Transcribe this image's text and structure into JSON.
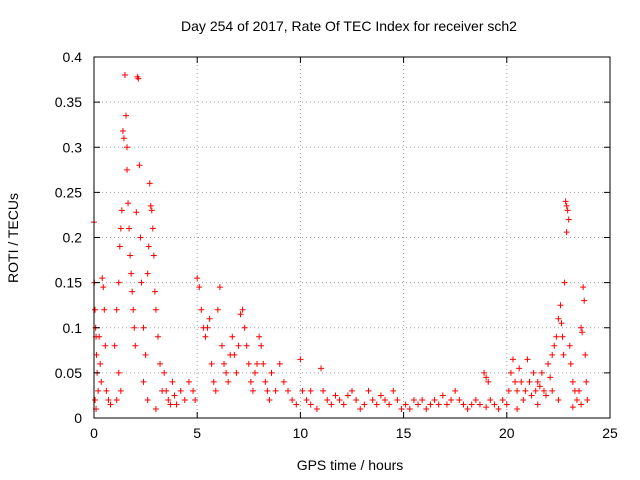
{
  "chart_data": {
    "type": "scatter",
    "title": "Day 254 of 2017, Rate Of TEC Index for receiver sch2",
    "xlabel": "GPS time / hours",
    "ylabel": "ROTI / TECUs",
    "xlim": [
      0,
      25
    ],
    "ylim": [
      0,
      0.4
    ],
    "xticks": [
      "0",
      "5",
      "10",
      "15",
      "20",
      "25"
    ],
    "yticks": [
      "0",
      "0.05",
      "0.1",
      "0.15",
      "0.2",
      "0.25",
      "0.3",
      "0.35",
      "0.4"
    ],
    "grid": true,
    "marker": "+",
    "color": "#ff0000",
    "series": [
      {
        "points": [
          [
            0.0,
            0.217
          ],
          [
            0.02,
            0.15
          ],
          [
            0.05,
            0.12
          ],
          [
            0.08,
            0.1
          ],
          [
            0.1,
            0.09
          ],
          [
            0.12,
            0.07
          ],
          [
            0.15,
            0.05
          ],
          [
            0.2,
            0.03
          ],
          [
            0.05,
            0.02
          ],
          [
            0.1,
            0.01
          ],
          [
            0.25,
            0.09
          ],
          [
            0.3,
            0.06
          ],
          [
            0.35,
            0.04
          ],
          [
            0.4,
            0.155
          ],
          [
            0.45,
            0.145
          ],
          [
            0.5,
            0.12
          ],
          [
            0.55,
            0.08
          ],
          [
            0.6,
            0.03
          ],
          [
            0.7,
            0.02
          ],
          [
            0.8,
            0.015
          ],
          [
            1.0,
            0.08
          ],
          [
            1.1,
            0.12
          ],
          [
            1.2,
            0.15
          ],
          [
            1.25,
            0.19
          ],
          [
            1.3,
            0.21
          ],
          [
            1.35,
            0.23
          ],
          [
            1.4,
            0.318
          ],
          [
            1.45,
            0.31
          ],
          [
            1.5,
            0.38
          ],
          [
            1.55,
            0.335
          ],
          [
            1.6,
            0.3
          ],
          [
            1.6,
            0.275
          ],
          [
            1.65,
            0.238
          ],
          [
            1.7,
            0.21
          ],
          [
            1.75,
            0.18
          ],
          [
            1.8,
            0.16
          ],
          [
            1.85,
            0.14
          ],
          [
            1.9,
            0.12
          ],
          [
            1.95,
            0.1
          ],
          [
            2.0,
            0.08
          ],
          [
            2.05,
            0.228
          ],
          [
            2.1,
            0.378
          ],
          [
            2.15,
            0.376
          ],
          [
            2.2,
            0.28
          ],
          [
            2.25,
            0.2
          ],
          [
            2.3,
            0.15
          ],
          [
            2.4,
            0.1
          ],
          [
            2.5,
            0.07
          ],
          [
            2.6,
            0.16
          ],
          [
            2.65,
            0.19
          ],
          [
            2.7,
            0.26
          ],
          [
            2.75,
            0.235
          ],
          [
            2.8,
            0.23
          ],
          [
            2.85,
            0.21
          ],
          [
            2.9,
            0.18
          ],
          [
            2.95,
            0.14
          ],
          [
            3.0,
            0.12
          ],
          [
            3.1,
            0.09
          ],
          [
            3.2,
            0.06
          ],
          [
            3.3,
            0.03
          ],
          [
            1.2,
            0.05
          ],
          [
            1.3,
            0.03
          ],
          [
            1.1,
            0.02
          ],
          [
            2.4,
            0.04
          ],
          [
            2.6,
            0.02
          ],
          [
            3.0,
            0.01
          ],
          [
            3.4,
            0.05
          ],
          [
            3.5,
            0.03
          ],
          [
            3.6,
            0.02
          ],
          [
            3.7,
            0.015
          ],
          [
            3.8,
            0.04
          ],
          [
            3.9,
            0.025
          ],
          [
            4.0,
            0.015
          ],
          [
            4.2,
            0.03
          ],
          [
            4.4,
            0.02
          ],
          [
            4.6,
            0.04
          ],
          [
            4.8,
            0.03
          ],
          [
            4.9,
            0.02
          ],
          [
            5.0,
            0.155
          ],
          [
            5.1,
            0.145
          ],
          [
            5.2,
            0.12
          ],
          [
            5.3,
            0.1
          ],
          [
            5.4,
            0.09
          ],
          [
            5.5,
            0.1
          ],
          [
            5.6,
            0.11
          ],
          [
            5.7,
            0.06
          ],
          [
            5.8,
            0.04
          ],
          [
            5.9,
            0.03
          ],
          [
            6.0,
            0.12
          ],
          [
            6.1,
            0.145
          ],
          [
            6.2,
            0.08
          ],
          [
            6.3,
            0.06
          ],
          [
            6.4,
            0.05
          ],
          [
            6.5,
            0.04
          ],
          [
            6.6,
            0.07
          ],
          [
            6.7,
            0.09
          ],
          [
            6.8,
            0.07
          ],
          [
            6.9,
            0.05
          ],
          [
            7.0,
            0.08
          ],
          [
            7.1,
            0.115
          ],
          [
            7.2,
            0.12
          ],
          [
            7.3,
            0.1
          ],
          [
            7.4,
            0.08
          ],
          [
            7.5,
            0.06
          ],
          [
            7.6,
            0.04
          ],
          [
            7.7,
            0.03
          ],
          [
            7.8,
            0.05
          ],
          [
            7.9,
            0.06
          ],
          [
            8.0,
            0.09
          ],
          [
            8.1,
            0.08
          ],
          [
            8.2,
            0.06
          ],
          [
            8.3,
            0.04
          ],
          [
            8.4,
            0.03
          ],
          [
            8.5,
            0.02
          ],
          [
            8.6,
            0.05
          ],
          [
            8.8,
            0.03
          ],
          [
            9.0,
            0.06
          ],
          [
            9.2,
            0.04
          ],
          [
            9.4,
            0.03
          ],
          [
            9.6,
            0.02
          ],
          [
            9.8,
            0.015
          ],
          [
            10.0,
            0.065
          ],
          [
            10.1,
            0.03
          ],
          [
            10.3,
            0.02
          ],
          [
            10.5,
            0.015
          ],
          [
            10.8,
            0.01
          ],
          [
            11.0,
            0.055
          ],
          [
            11.1,
            0.03
          ],
          [
            11.3,
            0.02
          ],
          [
            11.5,
            0.015
          ],
          [
            11.7,
            0.025
          ],
          [
            11.9,
            0.02
          ],
          [
            12.1,
            0.015
          ],
          [
            12.3,
            0.025
          ],
          [
            12.5,
            0.03
          ],
          [
            12.7,
            0.02
          ],
          [
            12.9,
            0.01
          ],
          [
            13.1,
            0.015
          ],
          [
            13.3,
            0.03
          ],
          [
            13.5,
            0.02
          ],
          [
            13.7,
            0.015
          ],
          [
            13.9,
            0.025
          ],
          [
            14.1,
            0.02
          ],
          [
            14.3,
            0.015
          ],
          [
            14.5,
            0.03
          ],
          [
            14.7,
            0.02
          ],
          [
            14.9,
            0.01
          ],
          [
            15.1,
            0.015
          ],
          [
            15.3,
            0.01
          ],
          [
            15.5,
            0.02
          ],
          [
            15.7,
            0.015
          ],
          [
            15.9,
            0.02
          ],
          [
            16.1,
            0.01
          ],
          [
            16.3,
            0.015
          ],
          [
            16.5,
            0.02
          ],
          [
            16.7,
            0.015
          ],
          [
            16.9,
            0.025
          ],
          [
            17.1,
            0.015
          ],
          [
            17.3,
            0.02
          ],
          [
            17.5,
            0.03
          ],
          [
            17.7,
            0.02
          ],
          [
            17.9,
            0.015
          ],
          [
            18.1,
            0.01
          ],
          [
            18.3,
            0.015
          ],
          [
            18.5,
            0.02
          ],
          [
            18.7,
            0.015
          ],
          [
            18.9,
            0.05
          ],
          [
            19.0,
            0.045
          ],
          [
            19.1,
            0.04
          ],
          [
            19.2,
            0.02
          ],
          [
            19.4,
            0.015
          ],
          [
            19.6,
            0.01
          ],
          [
            19.8,
            0.02
          ],
          [
            20.0,
            0.015
          ],
          [
            20.1,
            0.03
          ],
          [
            20.2,
            0.05
          ],
          [
            20.3,
            0.065
          ],
          [
            20.4,
            0.04
          ],
          [
            20.5,
            0.03
          ],
          [
            20.6,
            0.055
          ],
          [
            20.7,
            0.04
          ],
          [
            20.8,
            0.02
          ],
          [
            20.9,
            0.03
          ],
          [
            21.0,
            0.065
          ],
          [
            21.1,
            0.04
          ],
          [
            21.2,
            0.025
          ],
          [
            21.3,
            0.05
          ],
          [
            21.4,
            0.03
          ],
          [
            21.5,
            0.04
          ],
          [
            21.6,
            0.035
          ],
          [
            21.7,
            0.05
          ],
          [
            21.8,
            0.03
          ],
          [
            21.9,
            0.025
          ],
          [
            22.0,
            0.06
          ],
          [
            22.1,
            0.045
          ],
          [
            22.2,
            0.07
          ],
          [
            22.3,
            0.08
          ],
          [
            22.4,
            0.09
          ],
          [
            22.5,
            0.11
          ],
          [
            22.6,
            0.125
          ],
          [
            22.65,
            0.105
          ],
          [
            22.7,
            0.09
          ],
          [
            22.75,
            0.07
          ],
          [
            22.8,
            0.15
          ],
          [
            22.85,
            0.24
          ],
          [
            22.9,
            0.235
          ],
          [
            22.95,
            0.23
          ],
          [
            22.9,
            0.206
          ],
          [
            23.0,
            0.22
          ],
          [
            23.05,
            0.08
          ],
          [
            23.1,
            0.06
          ],
          [
            23.2,
            0.04
          ],
          [
            23.3,
            0.03
          ],
          [
            23.4,
            0.02
          ],
          [
            23.5,
            0.03
          ],
          [
            23.6,
            0.1
          ],
          [
            23.65,
            0.095
          ],
          [
            23.7,
            0.145
          ],
          [
            23.75,
            0.13
          ],
          [
            23.8,
            0.07
          ],
          [
            23.85,
            0.04
          ],
          [
            23.9,
            0.02
          ],
          [
            23.6,
            0.015
          ],
          [
            23.2,
            0.012
          ],
          [
            22.5,
            0.02
          ],
          [
            22.2,
            0.03
          ],
          [
            21.5,
            0.015
          ],
          [
            20.5,
            0.01
          ],
          [
            19.0,
            0.012
          ],
          [
            10.5,
            0.03
          ]
        ]
      }
    ]
  }
}
